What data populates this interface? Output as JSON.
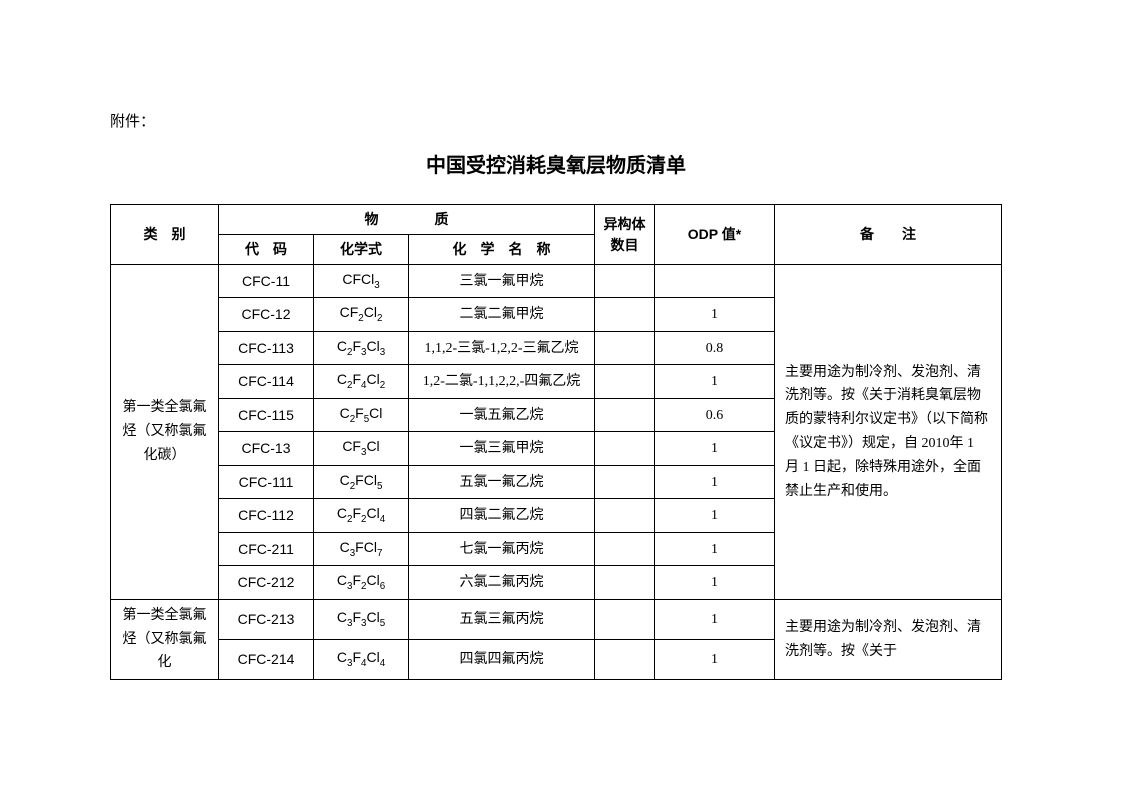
{
  "attachment_label": "附件：",
  "title": "中国受控消耗臭氧层物质清单",
  "headers": {
    "category": "类　别",
    "substance": "物　　　　质",
    "code": "代　码",
    "formula": "化学式",
    "name": "化　学　名　称",
    "isomer": "异构体数目",
    "odp": "ODP 值*",
    "remark": "备　　注"
  },
  "category1": "第一类全氯氟烃（又称氯氟化碳）",
  "category2": "第一类全氯氟烃（又称氯氟化",
  "remark1": "主要用途为制冷剂、发泡剂、清洗剂等。按《关于消耗臭氧层物质的蒙特利尔议定书》（以下简称《议定书》）规定，自 2010年 1 月 1 日起，除特殊用途外，全面禁止生产和使用。",
  "remark2": "主要用途为制冷剂、发泡剂、清洗剂等。按《关于",
  "rows": [
    {
      "code": "CFC-11",
      "formula": "CFCl<sub>3</sub>",
      "name": "三氯一氟甲烷",
      "isomer": "",
      "odp": ""
    },
    {
      "code": "CFC-12",
      "formula": "CF<sub>2</sub>Cl<sub>2</sub>",
      "name": "二氯二氟甲烷",
      "isomer": "",
      "odp": "1"
    },
    {
      "code": "CFC-113",
      "formula": "C<sub>2</sub>F<sub>3</sub>Cl<sub>3</sub>",
      "name": "1,1,2-三氯-1,2,2-三氟乙烷",
      "isomer": "",
      "odp": "0.8"
    },
    {
      "code": "CFC-114",
      "formula": "C<sub>2</sub>F<sub>4</sub>Cl<sub>2</sub>",
      "name": "1,2-二氯-1,1,2,2,-四氟乙烷",
      "isomer": "",
      "odp": "1"
    },
    {
      "code": "CFC-115",
      "formula": "C<sub>2</sub>F<sub>5</sub>Cl",
      "name": "一氯五氟乙烷",
      "isomer": "",
      "odp": "0.6"
    },
    {
      "code": "CFC-13",
      "formula": "CF<sub>3</sub>Cl",
      "name": "一氯三氟甲烷",
      "isomer": "",
      "odp": "1"
    },
    {
      "code": "CFC-111",
      "formula": "C<sub>2</sub>FCl<sub>5</sub>",
      "name": "五氯一氟乙烷",
      "isomer": "",
      "odp": "1"
    },
    {
      "code": "CFC-112",
      "formula": "C<sub>2</sub>F<sub>2</sub>Cl<sub>4</sub>",
      "name": "四氯二氟乙烷",
      "isomer": "",
      "odp": "1"
    },
    {
      "code": "CFC-211",
      "formula": "C<sub>3</sub>FCl<sub>7</sub>",
      "name": "七氯一氟丙烷",
      "isomer": "",
      "odp": "1"
    },
    {
      "code": "CFC-212",
      "formula": "C<sub>3</sub>F<sub>2</sub>Cl<sub>6</sub>",
      "name": "六氯二氟丙烷",
      "isomer": "",
      "odp": "1"
    },
    {
      "code": "CFC-213",
      "formula": "C<sub>3</sub>F<sub>3</sub>Cl<sub>5</sub>",
      "name": "五氯三氟丙烷",
      "isomer": "",
      "odp": "1"
    },
    {
      "code": "CFC-214",
      "formula": "C<sub>3</sub>F<sub>4</sub>Cl<sub>4</sub>",
      "name": "四氯四氟丙烷",
      "isomer": "",
      "odp": "1"
    }
  ]
}
